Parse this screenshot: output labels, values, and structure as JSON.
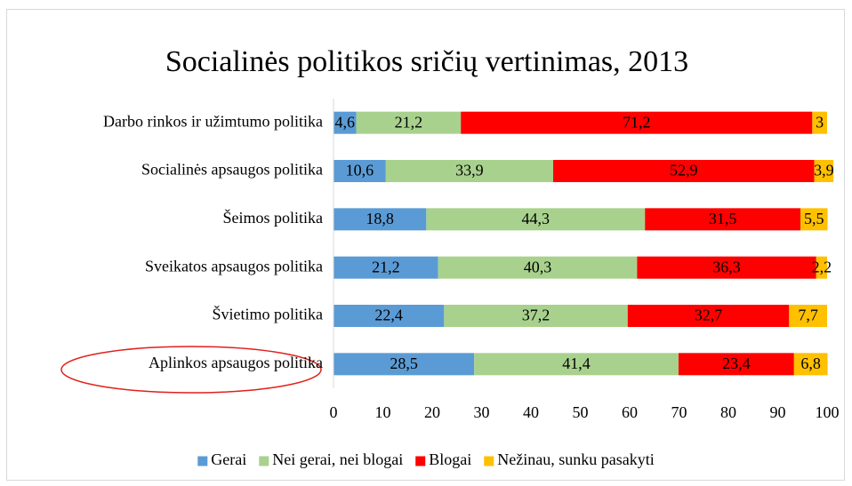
{
  "chart_data": {
    "type": "stacked_bar_horizontal",
    "title": "Socialinės politikos sričių vertinimas, 2013",
    "categories": [
      "Darbo rinkos ir užimtumo politika",
      "Socialinės apsaugos politika",
      "Šeimos politika",
      "Sveikatos apsaugos politika",
      "Švietimo politika",
      "Aplinkos apsaugos politika"
    ],
    "series": [
      {
        "name": "Gerai",
        "color": "#5b9bd5",
        "values": [
          4.6,
          10.6,
          18.8,
          21.2,
          22.4,
          28.5
        ],
        "value_labels": [
          "4,6",
          "10,6",
          "18,8",
          "21,2",
          "22,4",
          "28,5"
        ]
      },
      {
        "name": "Nei gerai, nei blogai",
        "color": "#a9d18e",
        "values": [
          21.2,
          33.9,
          44.3,
          40.3,
          37.2,
          41.4
        ],
        "value_labels": [
          "21,2",
          "33,9",
          "44,3",
          "40,3",
          "37,2",
          "41,4"
        ]
      },
      {
        "name": "Blogai",
        "color": "#ff0000",
        "values": [
          71.2,
          52.9,
          31.5,
          36.3,
          32.7,
          23.4
        ],
        "value_labels": [
          "71,2",
          "52,9",
          "31,5",
          "36,3",
          "32,7",
          "23,4"
        ]
      },
      {
        "name": "Nežinau, sunku pasakyti",
        "color": "#ffc000",
        "values": [
          3,
          3.9,
          5.5,
          2.2,
          7.7,
          6.8
        ],
        "value_labels": [
          "3",
          "3,9",
          "5,5",
          "2,2",
          "7,7",
          "6,8"
        ]
      }
    ],
    "xlim": [
      0,
      100
    ],
    "xticks": [
      0,
      10,
      20,
      30,
      40,
      50,
      60,
      70,
      80,
      90,
      100
    ],
    "grid": false,
    "legend": "bottom"
  }
}
